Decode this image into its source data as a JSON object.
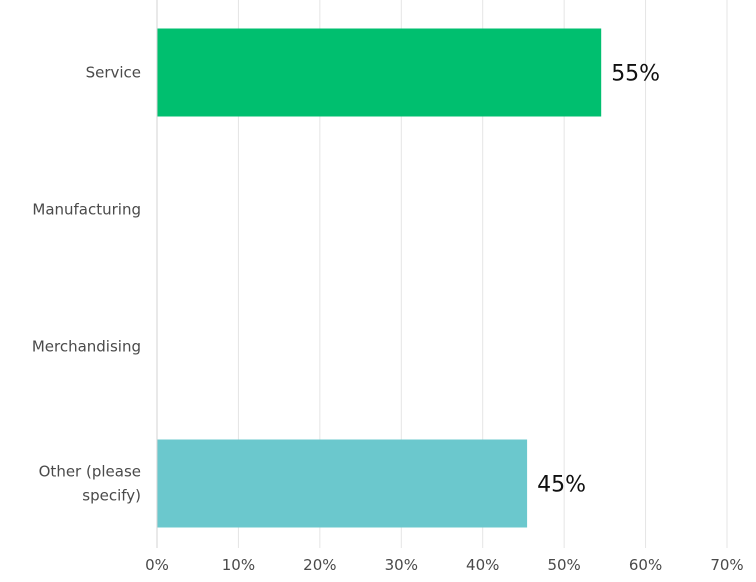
{
  "chart_data": {
    "type": "bar",
    "orientation": "horizontal",
    "categories": [
      "Service",
      "Manufacturing",
      "Merchandising",
      "Other (please specify)"
    ],
    "category_label_lines": [
      [
        "Service"
      ],
      [
        "Manufacturing"
      ],
      [
        "Merchandising"
      ],
      [
        "Other (please",
        "specify)"
      ]
    ],
    "values": [
      54.55,
      0,
      0,
      45.45
    ],
    "data_labels": [
      "55%",
      "",
      "",
      "45%"
    ],
    "bar_colors": [
      "#00bf6f",
      "",
      "",
      "#6bc8cd"
    ],
    "x_ticks": [
      0,
      10,
      20,
      30,
      40,
      50,
      60,
      70
    ],
    "x_tick_labels": [
      "0%",
      "10%",
      "20%",
      "30%",
      "40%",
      "50%",
      "60%",
      "70%"
    ],
    "xlim": [
      0,
      70
    ],
    "grid": true,
    "gridline_color": "#e5e5e5",
    "axis_color": "#d3d3d3",
    "title": "",
    "xlabel": "",
    "ylabel": ""
  }
}
